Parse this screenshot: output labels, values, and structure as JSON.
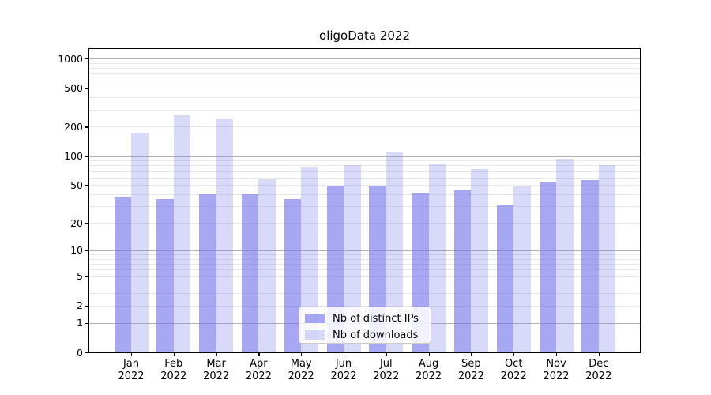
{
  "title": "oligoData 2022",
  "chart_data": {
    "type": "bar",
    "title": "oligoData 2022",
    "categories": [
      "Jan",
      "Feb",
      "Mar",
      "Apr",
      "May",
      "Jun",
      "Jul",
      "Aug",
      "Sep",
      "Oct",
      "Nov",
      "Dec"
    ],
    "x_year_label": "2022",
    "series": [
      {
        "name": "Nb of distinct IPs",
        "key": "distinct-ips",
        "values": [
          38,
          36,
          40,
          40,
          36,
          49,
          49,
          42,
          44,
          31,
          53,
          56
        ]
      },
      {
        "name": "Nb of downloads",
        "key": "downloads",
        "values": [
          175,
          260,
          245,
          57,
          76,
          80,
          110,
          82,
          73,
          48,
          94,
          80
        ]
      }
    ],
    "y_scale": "log10(1+y)",
    "y_ticks": [
      0,
      1,
      2,
      5,
      10,
      20,
      50,
      100,
      200,
      500,
      1000
    ],
    "ylim": [
      0,
      1250
    ],
    "xlabel": "",
    "ylabel": "",
    "grid": "horizontal major+minor",
    "legend_position": "lower center"
  },
  "colors": {
    "bar_distinct_ips": "rgba(113,113,234,0.62)",
    "bar_downloads": "rgba(113,113,234,0.27)",
    "grid_major": "#b3b3b3",
    "grid_minor": "#e8e8e8",
    "spine": "#000000",
    "text": "#000000",
    "legend_border": "#cccccc",
    "legend_bg": "rgba(255,255,255,0.85)"
  }
}
